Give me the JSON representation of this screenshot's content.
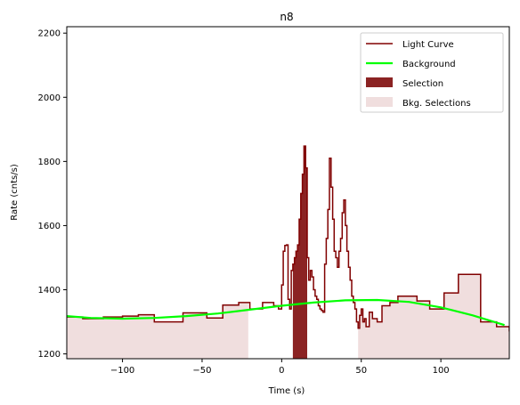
{
  "chart_data": {
    "type": "line",
    "title": "n8",
    "xlabel": "Time (s)",
    "ylabel": "Rate (cnts/s)",
    "xlim": [
      -135,
      143
    ],
    "ylim": [
      1185,
      2220
    ],
    "xticks": [
      -100,
      -50,
      0,
      50,
      100
    ],
    "yticks": [
      1200,
      1400,
      1600,
      1800,
      2000,
      2200
    ],
    "grid": false,
    "legend_placement": "top-right",
    "legend": [
      "Light Curve",
      "Background",
      "Selection",
      "Bkg. Selections"
    ],
    "colors": {
      "light_curve": "#800000",
      "background": "#00ff00",
      "selection": "#8b2323",
      "bkg_selection": "#f0dede"
    },
    "light_curve": {
      "x": [
        -135,
        -125,
        -112,
        -100,
        -90,
        -80,
        -62,
        -47,
        -37,
        -27,
        -20,
        -12,
        -5,
        -2,
        0,
        1,
        2,
        3,
        4,
        5,
        6,
        7,
        8,
        9,
        10,
        11,
        12,
        13,
        14,
        15,
        16,
        17,
        18,
        19,
        20,
        21,
        22,
        23,
        24,
        25,
        26,
        27,
        28,
        29,
        30,
        31,
        32,
        33,
        34,
        35,
        36,
        37,
        38,
        39,
        40,
        41,
        42,
        43,
        44,
        45,
        46,
        47,
        48,
        49,
        50,
        51,
        52,
        53,
        55,
        57,
        60,
        63,
        68,
        73,
        85,
        93,
        102,
        111,
        125,
        135,
        143
      ],
      "y": [
        1315,
        1310,
        1315,
        1318,
        1322,
        1300,
        1328,
        1312,
        1352,
        1360,
        1340,
        1360,
        1350,
        1340,
        1415,
        1520,
        1538,
        1540,
        1370,
        1340,
        1460,
        1480,
        1500,
        1520,
        1540,
        1620,
        1700,
        1760,
        1848,
        1780,
        1500,
        1430,
        1460,
        1440,
        1400,
        1380,
        1370,
        1350,
        1340,
        1335,
        1330,
        1480,
        1560,
        1650,
        1810,
        1720,
        1620,
        1520,
        1500,
        1470,
        1520,
        1560,
        1640,
        1680,
        1600,
        1520,
        1470,
        1430,
        1380,
        1360,
        1340,
        1300,
        1280,
        1320,
        1340,
        1300,
        1310,
        1285,
        1330,
        1310,
        1300,
        1350,
        1360,
        1380,
        1365,
        1340,
        1390,
        1448,
        1300,
        1285,
        1270
      ]
    },
    "background": {
      "x": [
        -135,
        -120,
        -100,
        -80,
        -60,
        -40,
        -20,
        0,
        20,
        40,
        60,
        80,
        100,
        120,
        140
      ],
      "y": [
        1318,
        1312,
        1310,
        1312,
        1318,
        1326,
        1338,
        1350,
        1360,
        1367,
        1368,
        1362,
        1345,
        1320,
        1290
      ]
    },
    "selection": {
      "x_start": 7,
      "x_end": 16
    },
    "bkg_selections": [
      {
        "x_start": -135,
        "x_end": -21
      },
      {
        "x_start": 48,
        "x_end": 143
      }
    ]
  }
}
